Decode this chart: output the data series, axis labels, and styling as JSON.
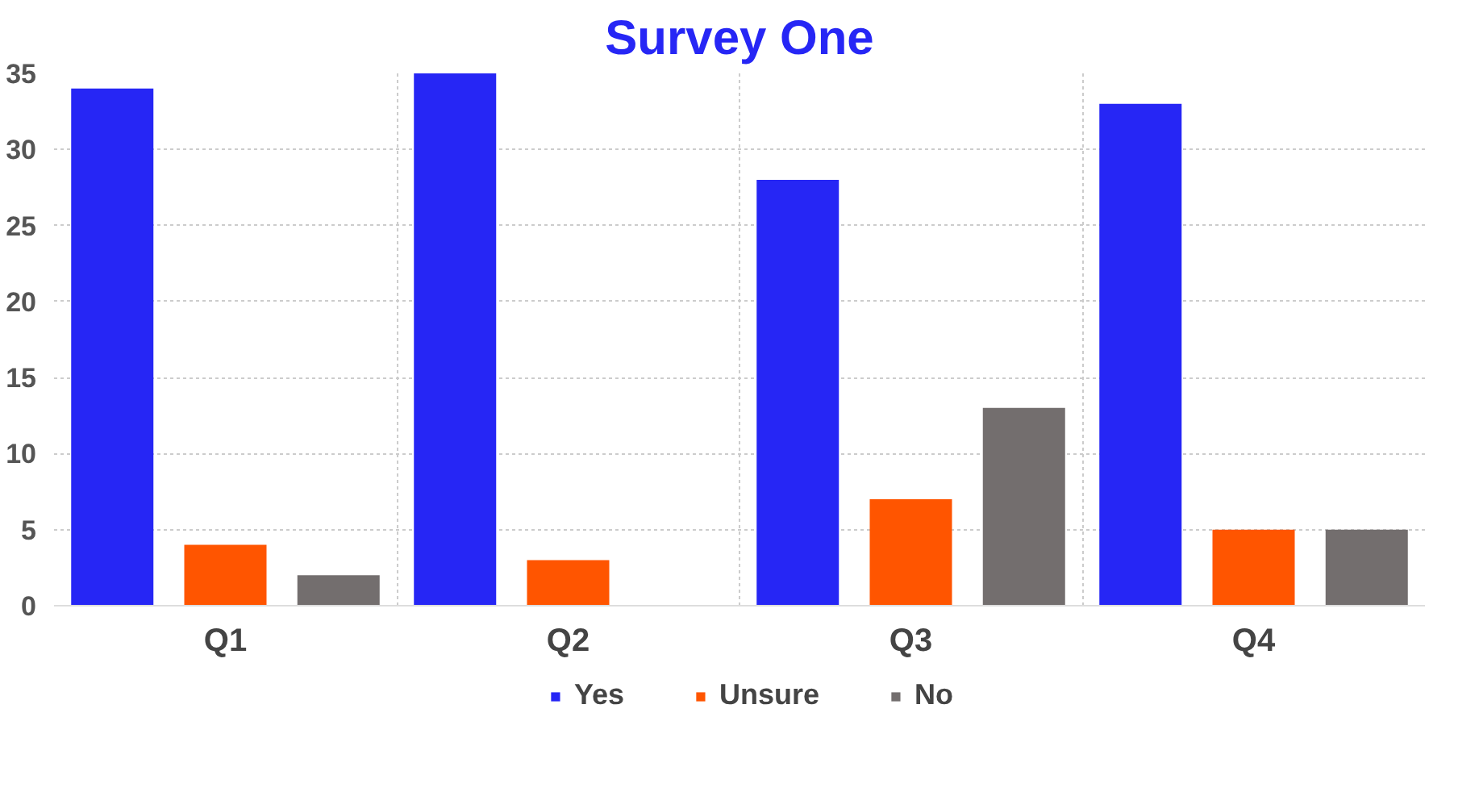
{
  "chart_data": {
    "type": "bar",
    "title": "Survey One",
    "categories": [
      "Q1",
      "Q2",
      "Q3",
      "Q4"
    ],
    "series": [
      {
        "name": "Yes",
        "color": "#2626f5",
        "values": [
          34,
          35,
          28,
          33
        ]
      },
      {
        "name": "Unsure",
        "color": "#ff5500",
        "values": [
          4,
          3,
          7,
          5
        ]
      },
      {
        "name": "No",
        "color": "#736e6e",
        "values": [
          2,
          0,
          13,
          5
        ]
      }
    ],
    "ylim": [
      0,
      35
    ],
    "yticks": [
      0,
      5,
      10,
      15,
      20,
      25,
      30,
      35
    ],
    "grid": true,
    "legend": "bottom"
  }
}
